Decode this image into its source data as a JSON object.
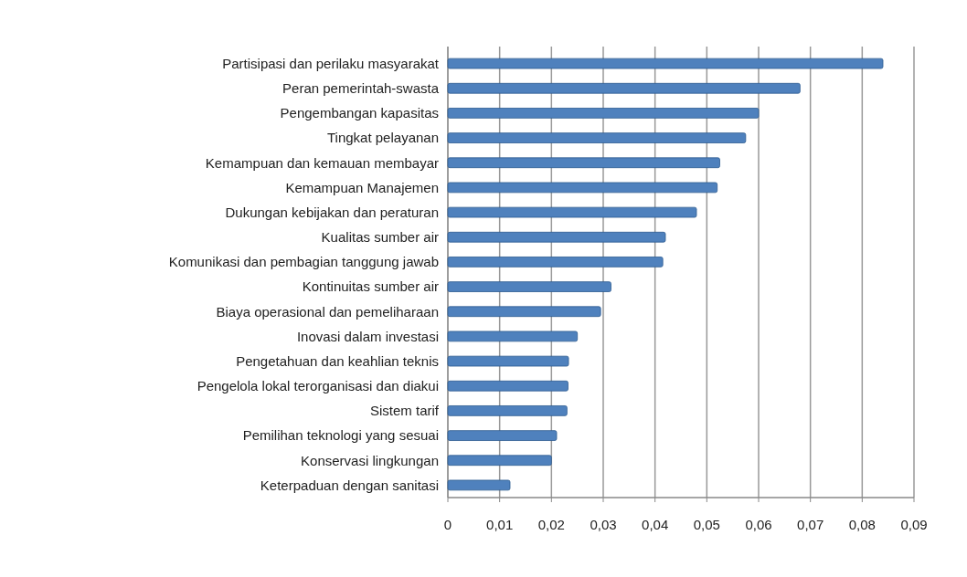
{
  "chart_data": {
    "type": "bar",
    "orientation": "horizontal",
    "categories": [
      "Partisipasi dan perilaku masyarakat",
      "Peran pemerintah-swasta",
      "Pengembangan kapasitas",
      "Tingkat pelayanan",
      "Kemampuan dan kemauan membayar",
      "Kemampuan Manajemen",
      "Dukungan kebijakan dan peraturan",
      "Kualitas sumber air",
      "Komunikasi dan pembagian tanggung jawab",
      "Kontinuitas sumber air",
      "Biaya operasional dan pemeliharaan",
      "Inovasi dalam investasi",
      "Pengetahuan dan keahlian teknis",
      "Pengelola lokal terorganisasi dan diakui",
      "Sistem tarif",
      "Pemilihan teknologi yang sesuai",
      "Konservasi lingkungan",
      "Keterpaduan dengan sanitasi"
    ],
    "values": [
      0.084,
      0.068,
      0.06,
      0.0575,
      0.0525,
      0.052,
      0.048,
      0.042,
      0.0415,
      0.0315,
      0.0295,
      0.025,
      0.0233,
      0.0232,
      0.023,
      0.021,
      0.02,
      0.012
    ],
    "color": "#4f81bd",
    "xlim": [
      0,
      0.09
    ],
    "xticks": [
      {
        "value": 0,
        "label": "0"
      },
      {
        "value": 0.01,
        "label": "0,01"
      },
      {
        "value": 0.02,
        "label": "0,02"
      },
      {
        "value": 0.03,
        "label": "0,03"
      },
      {
        "value": 0.04,
        "label": "0,04"
      },
      {
        "value": 0.05,
        "label": "0,05"
      },
      {
        "value": 0.06,
        "label": "0,06"
      },
      {
        "value": 0.07,
        "label": "0,07"
      },
      {
        "value": 0.08,
        "label": "0,08"
      },
      {
        "value": 0.09,
        "label": "0,09"
      }
    ],
    "grid": "x"
  }
}
